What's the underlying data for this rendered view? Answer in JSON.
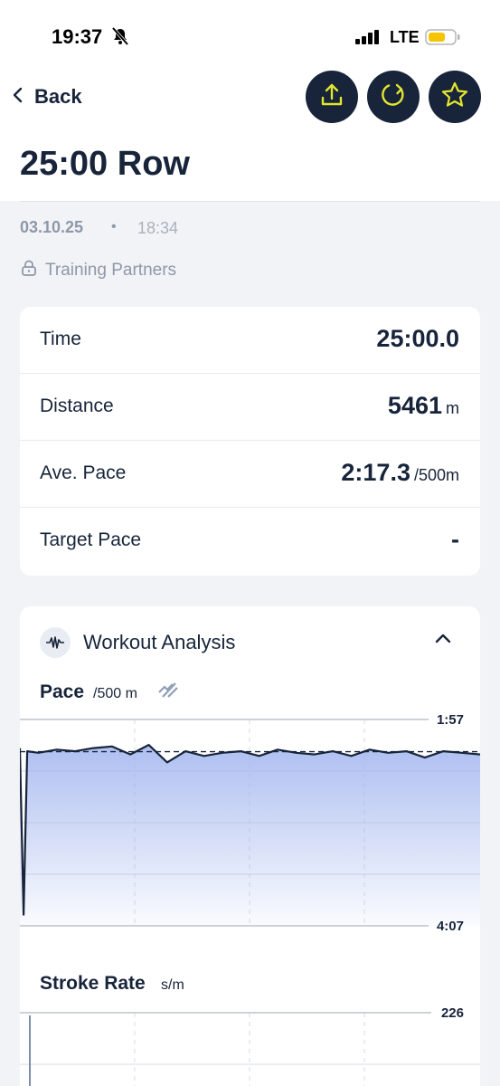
{
  "status": {
    "time": "19:37",
    "network": "LTE"
  },
  "header": {
    "back_label": "Back",
    "title": "25:00 Row",
    "actions": [
      "upload-icon",
      "sync-icon",
      "star-icon"
    ]
  },
  "meta": {
    "date": "03.10.25",
    "separator": "•",
    "time": "18:34",
    "privacy": "Training Partners"
  },
  "stats": [
    {
      "label": "Time",
      "value": "25:00.0",
      "unit": ""
    },
    {
      "label": "Distance",
      "value": "5461",
      "unit": "m"
    },
    {
      "label": "Ave. Pace",
      "value": "2:17.3",
      "unit": "/500m"
    },
    {
      "label": "Target Pace",
      "value": "-",
      "unit": ""
    }
  ],
  "analysis": {
    "title": "Workout Analysis",
    "pace_title": "Pace",
    "pace_unit": "/500 m",
    "rate_title": "Stroke Rate",
    "rate_unit": "s/m"
  },
  "colors": {
    "navy": "#17243a",
    "accent_yellow": "#e3e62e",
    "chart_fill": "#9fb3ee"
  },
  "chart_data": [
    {
      "type": "line",
      "title": "Pace",
      "unit": "/500 m",
      "y_axis_inverted": true,
      "ylim_top": "1:57",
      "ylim_bottom": "4:07",
      "average_label": "2:17.3",
      "x": [
        0,
        0.2,
        0.4,
        1,
        2,
        3,
        4,
        5,
        6,
        7,
        8,
        9,
        10,
        11,
        12,
        13,
        14,
        15,
        16,
        17,
        18,
        19,
        20,
        21,
        22,
        23,
        24,
        25
      ],
      "values_sec": [
        135,
        240,
        137,
        138,
        136,
        137,
        135,
        134,
        139,
        133,
        144,
        137,
        140,
        138,
        137,
        140,
        136,
        138,
        139,
        137,
        140,
        136,
        138,
        137,
        141,
        137,
        138,
        139
      ]
    },
    {
      "type": "line",
      "title": "Stroke Rate",
      "unit": "s/m",
      "ylim_top": "226"
    }
  ]
}
